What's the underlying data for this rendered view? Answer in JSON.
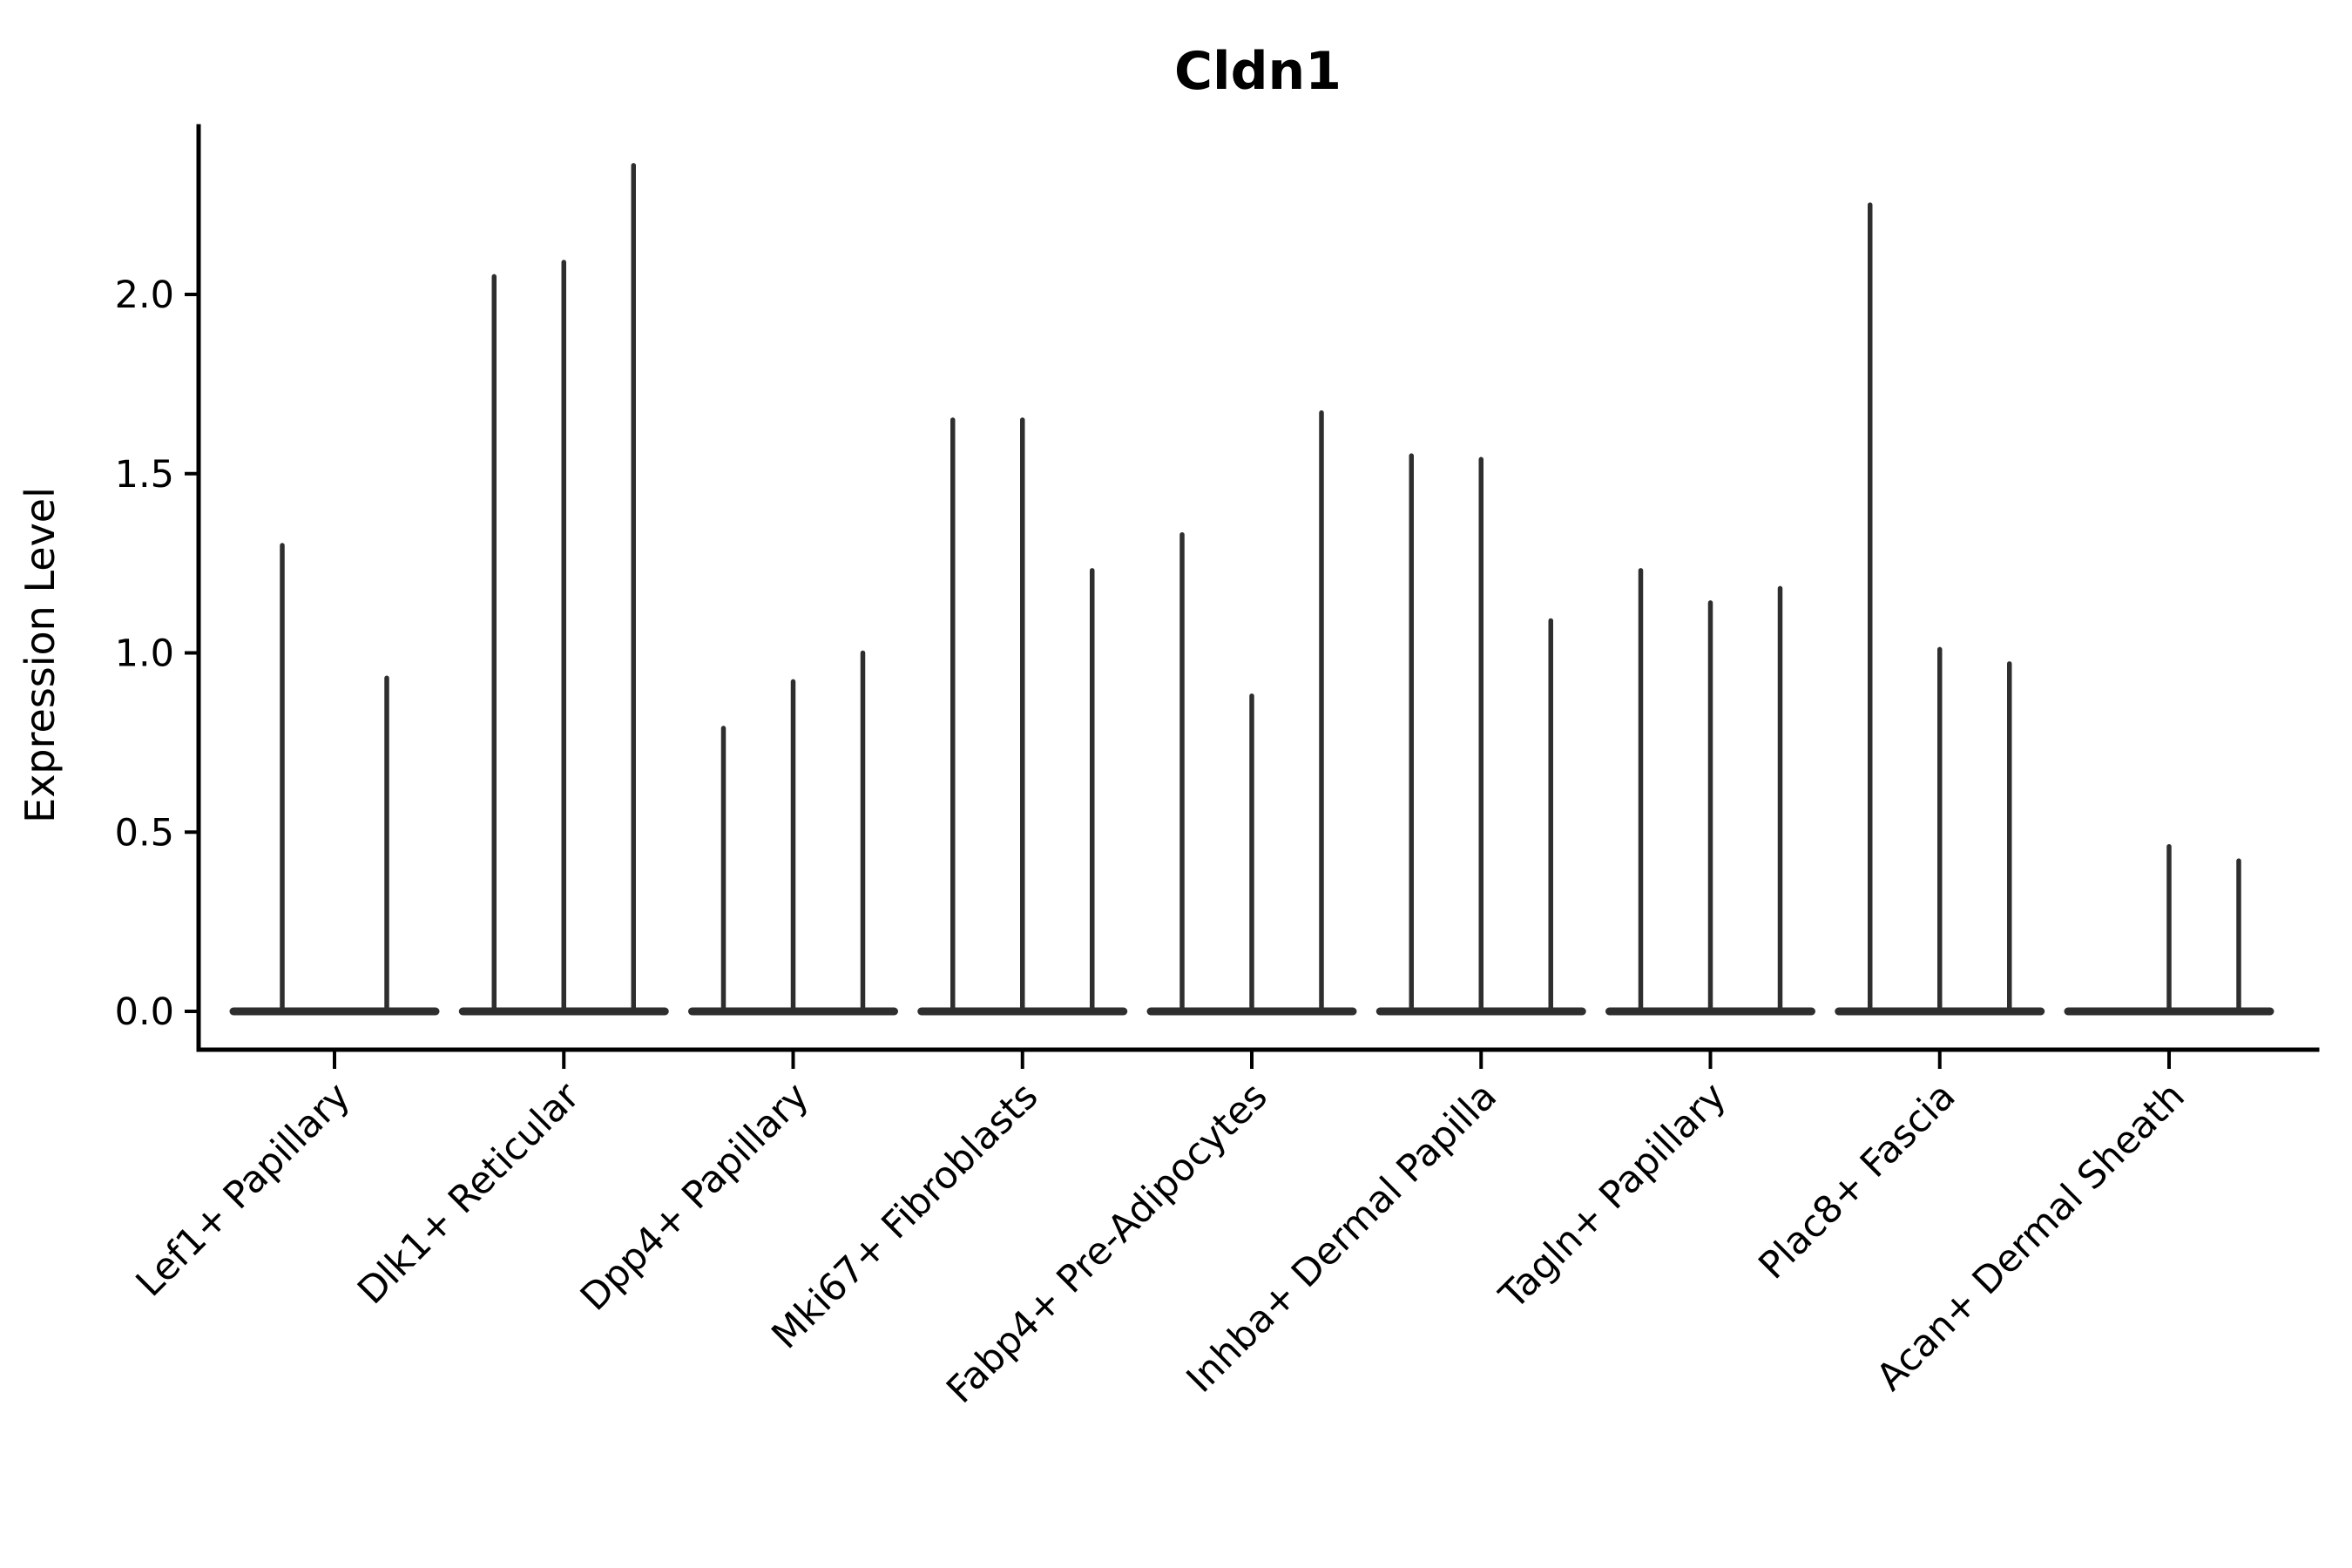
{
  "chart_data": {
    "type": "violin",
    "title": "Cldn1",
    "xlabel": "",
    "ylabel": "Expression Level",
    "yticks": [
      0.0,
      0.5,
      1.0,
      1.5,
      2.0
    ],
    "ylim": [
      -0.11,
      2.47
    ],
    "grid": false,
    "legend": null,
    "categories": [
      "Lef1+ Papillary",
      "Dlk1+ Reticular",
      "Dpp4+ Papillary",
      "Mki67+ Fibroblasts",
      "Fabp4+ Pre-Adipocytes",
      "Inhba+ Dermal Papilla",
      "Tagln+ Papillary",
      "Plac8+ Fascia",
      "Acan+ Dermal Sheath"
    ],
    "groups": [
      {
        "category": "Lef1+ Papillary",
        "violins": [
          {
            "offset": -60,
            "max": 1.3
          },
          {
            "offset": 60,
            "max": 0.93
          }
        ]
      },
      {
        "category": "Dlk1+ Reticular",
        "violins": [
          {
            "offset": -80,
            "max": 2.05
          },
          {
            "offset": 0,
            "max": 2.09
          },
          {
            "offset": 80,
            "max": 2.36
          }
        ]
      },
      {
        "category": "Dpp4+ Papillary",
        "violins": [
          {
            "offset": -80,
            "max": 0.79
          },
          {
            "offset": 0,
            "max": 0.92
          },
          {
            "offset": 80,
            "max": 1.0
          }
        ]
      },
      {
        "category": "Mki67+ Fibroblasts",
        "violins": [
          {
            "offset": -80,
            "max": 1.65
          },
          {
            "offset": 0,
            "max": 1.65
          },
          {
            "offset": 80,
            "max": 1.23
          }
        ]
      },
      {
        "category": "Fabp4+ Pre-Adipocytes",
        "violins": [
          {
            "offset": -80,
            "max": 1.33
          },
          {
            "offset": 0,
            "max": 0.88
          },
          {
            "offset": 80,
            "max": 1.67
          }
        ]
      },
      {
        "category": "Inhba+ Dermal Papilla",
        "violins": [
          {
            "offset": -80,
            "max": 1.55
          },
          {
            "offset": 0,
            "max": 1.54
          },
          {
            "offset": 80,
            "max": 1.09
          }
        ]
      },
      {
        "category": "Tagln+ Papillary",
        "violins": [
          {
            "offset": -80,
            "max": 1.23
          },
          {
            "offset": 0,
            "max": 1.14
          },
          {
            "offset": 80,
            "max": 1.18
          }
        ]
      },
      {
        "category": "Plac8+ Fascia",
        "violins": [
          {
            "offset": -80,
            "max": 2.25
          },
          {
            "offset": 0,
            "max": 1.01
          },
          {
            "offset": 80,
            "max": 0.97
          }
        ]
      },
      {
        "category": "Acan+ Dermal Sheath",
        "violins": [
          {
            "offset": -80,
            "max": 0.0
          },
          {
            "offset": 0,
            "max": 0.46
          },
          {
            "offset": 80,
            "max": 0.42
          }
        ]
      }
    ],
    "colors": {
      "violin_stroke": "#2e2e2e",
      "axis": "#000000",
      "text": "#000000",
      "background": "#ffffff"
    }
  }
}
